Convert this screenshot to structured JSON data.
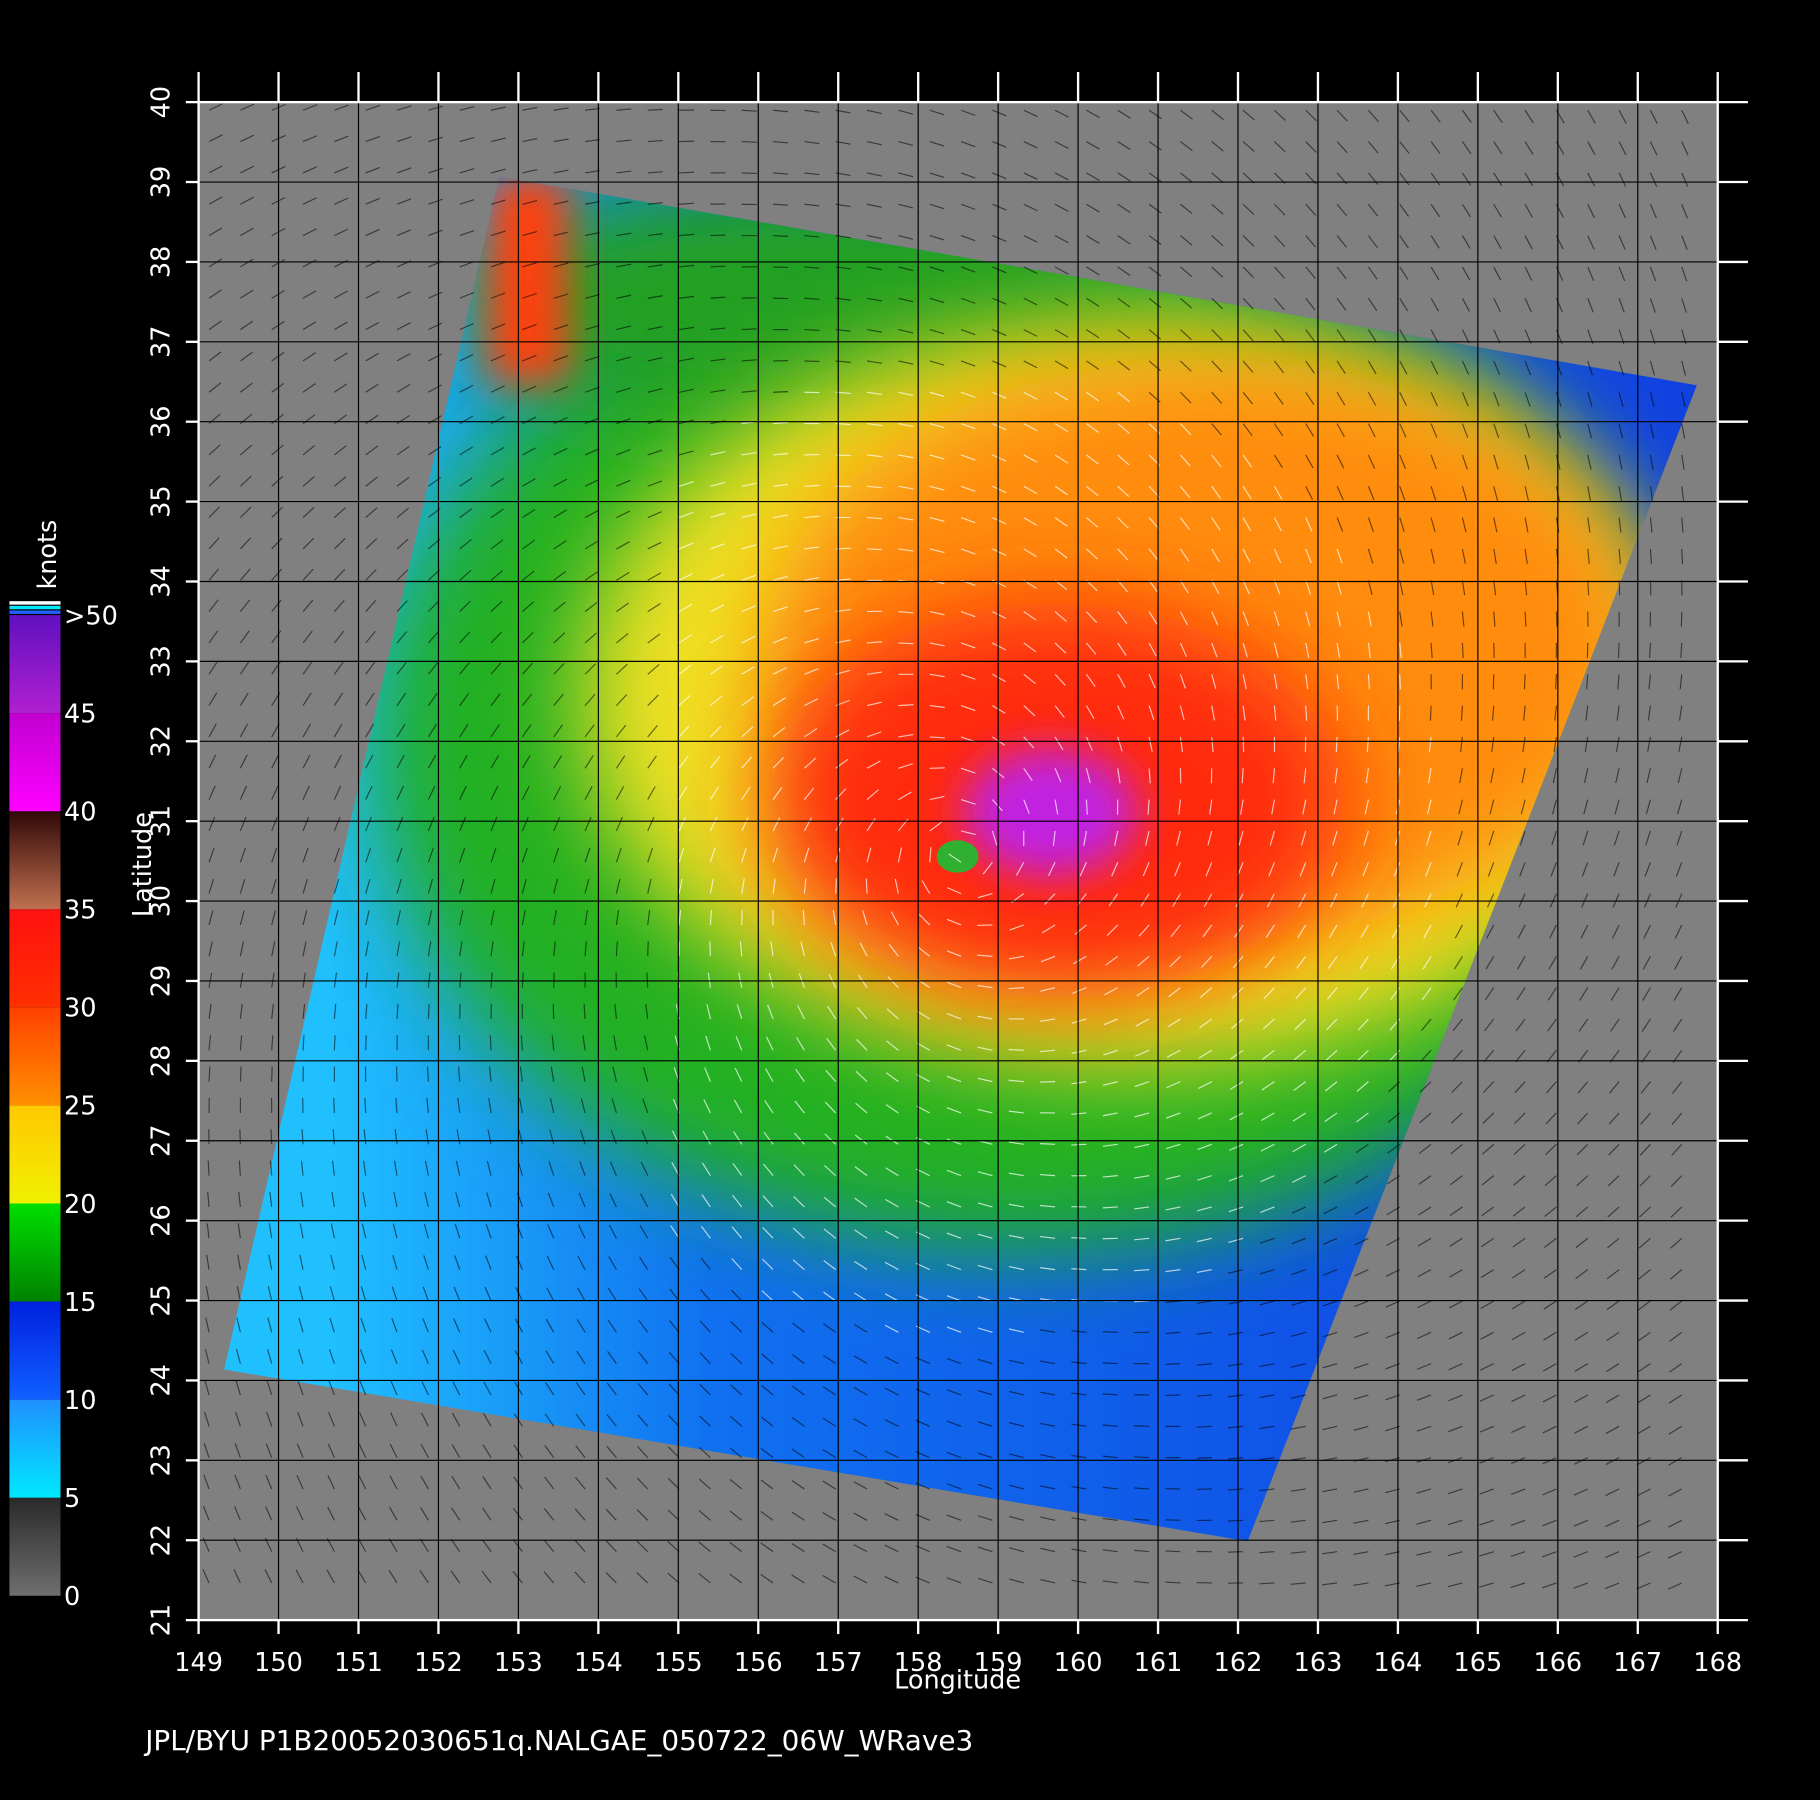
{
  "map": {
    "caption": "JPL/BYU  P1B20052030651q.NALGAE_050722_06W_WRave3",
    "x_label": "Longitude",
    "y_label": "Latitude",
    "lon_ticks": [
      149,
      150,
      151,
      152,
      153,
      154,
      155,
      156,
      157,
      158,
      159,
      160,
      161,
      162,
      163,
      164,
      165,
      166,
      167,
      168
    ],
    "lat_ticks": [
      21,
      22,
      23,
      24,
      25,
      26,
      27,
      28,
      29,
      30,
      31,
      32,
      33,
      34,
      35,
      36,
      37,
      38,
      39,
      40
    ],
    "xlim": [
      149,
      168
    ],
    "ylim": [
      21,
      40
    ],
    "colorbar": {
      "unit": "knots",
      "lim": [
        0,
        50
      ],
      "ticks": [
        0,
        5,
        10,
        15,
        20,
        25,
        30,
        35,
        40,
        45,
        {
          "value": 50,
          "label": ">50"
        }
      ],
      "colors": [
        [
          "#6e6e6e",
          "#2a2a2a"
        ],
        [
          "#00e8ff",
          "#2090ff"
        ],
        [
          "#1060ff",
          "#0020e0"
        ],
        [
          "#008000",
          "#00e000"
        ],
        [
          "#f0f000",
          "#ffc800"
        ],
        [
          "#ff9000",
          "#ff4000"
        ],
        [
          "#ff3000",
          "#ff1010"
        ],
        [
          "#c07050",
          "#300808"
        ],
        [
          "#ff00ff",
          "#c000d0"
        ],
        [
          "#b020d0",
          "#6010c0"
        ]
      ]
    }
  }
}
